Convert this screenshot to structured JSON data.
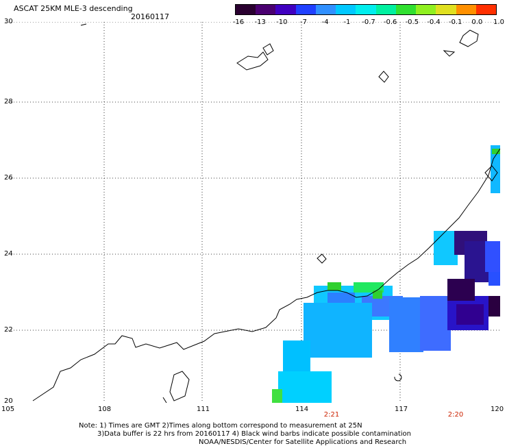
{
  "header": {
    "title": "ASCAT 25KM MLE-3 descending",
    "date": "20160117"
  },
  "colorbar": {
    "labels": [
      "-16",
      "-13",
      "-10",
      "-7",
      "-4",
      "-1",
      "-0.7",
      "-0.6",
      "-0.5",
      "-0.4",
      "-0.1",
      "0.0",
      "1.0"
    ],
    "colors": [
      "#2a0030",
      "#4a0070",
      "#4000c0",
      "#2040ff",
      "#3090ff",
      "#00c8ff",
      "#00eeee",
      "#00f0a0",
      "#30e030",
      "#90f020",
      "#e0e020",
      "#ff9000",
      "#ff3000"
    ]
  },
  "axes": {
    "lat_labels": [
      "30",
      "28",
      "26",
      "24",
      "22",
      "20"
    ],
    "lon_labels": [
      "105",
      "108",
      "111",
      "114",
      "117",
      "120"
    ]
  },
  "pass_times": [
    "2:21",
    "2:20"
  ],
  "footer": {
    "line1": "Note: 1) Times are GMT 2)Times along bottom correspond to measurement at 25N",
    "line2": "3)Data buffer is 22 hrs from 20160117 4) Black wind barbs indicate possible contamination",
    "line3": "NOAA/NESDIS/Center for Satellite Applications and Research"
  }
}
